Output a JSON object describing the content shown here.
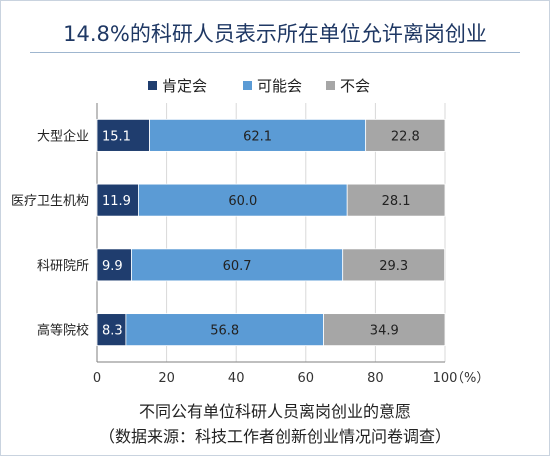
{
  "title": "14.8%的科研人员表示所在单位允许离岗创业",
  "caption_line1": "不同公有单位科研人员离岗创业的意愿",
  "caption_line2": "（数据来源：科技工作者创新创业情况问卷调查）",
  "chart_data": {
    "type": "bar",
    "orientation": "horizontal",
    "stacked": true,
    "categories": [
      "大型企业",
      "医疗卫生机构",
      "科研院所",
      "高等院校"
    ],
    "series": [
      {
        "name": "肯定会",
        "color": "#1f3d6e",
        "values": [
          15.1,
          11.9,
          9.9,
          8.3
        ]
      },
      {
        "name": "可能会",
        "color": "#5b9bd5",
        "values": [
          62.1,
          60.0,
          60.7,
          56.8
        ]
      },
      {
        "name": "不会",
        "color": "#a6a6a6",
        "values": [
          22.8,
          28.1,
          29.3,
          34.9
        ]
      }
    ],
    "data_labels": [
      [
        "15.1",
        "62.1",
        "22.8"
      ],
      [
        "11.9",
        "60.0",
        "28.1"
      ],
      [
        "9.9",
        "60.7",
        "29.3"
      ],
      [
        "8.3",
        "56.8",
        "34.9"
      ]
    ],
    "xlim": [
      0,
      100
    ],
    "x_ticks": [
      "0",
      "20",
      "40",
      "60",
      "80",
      "100"
    ],
    "x_unit": "（%）",
    "legend_position": "top",
    "grid": true
  }
}
